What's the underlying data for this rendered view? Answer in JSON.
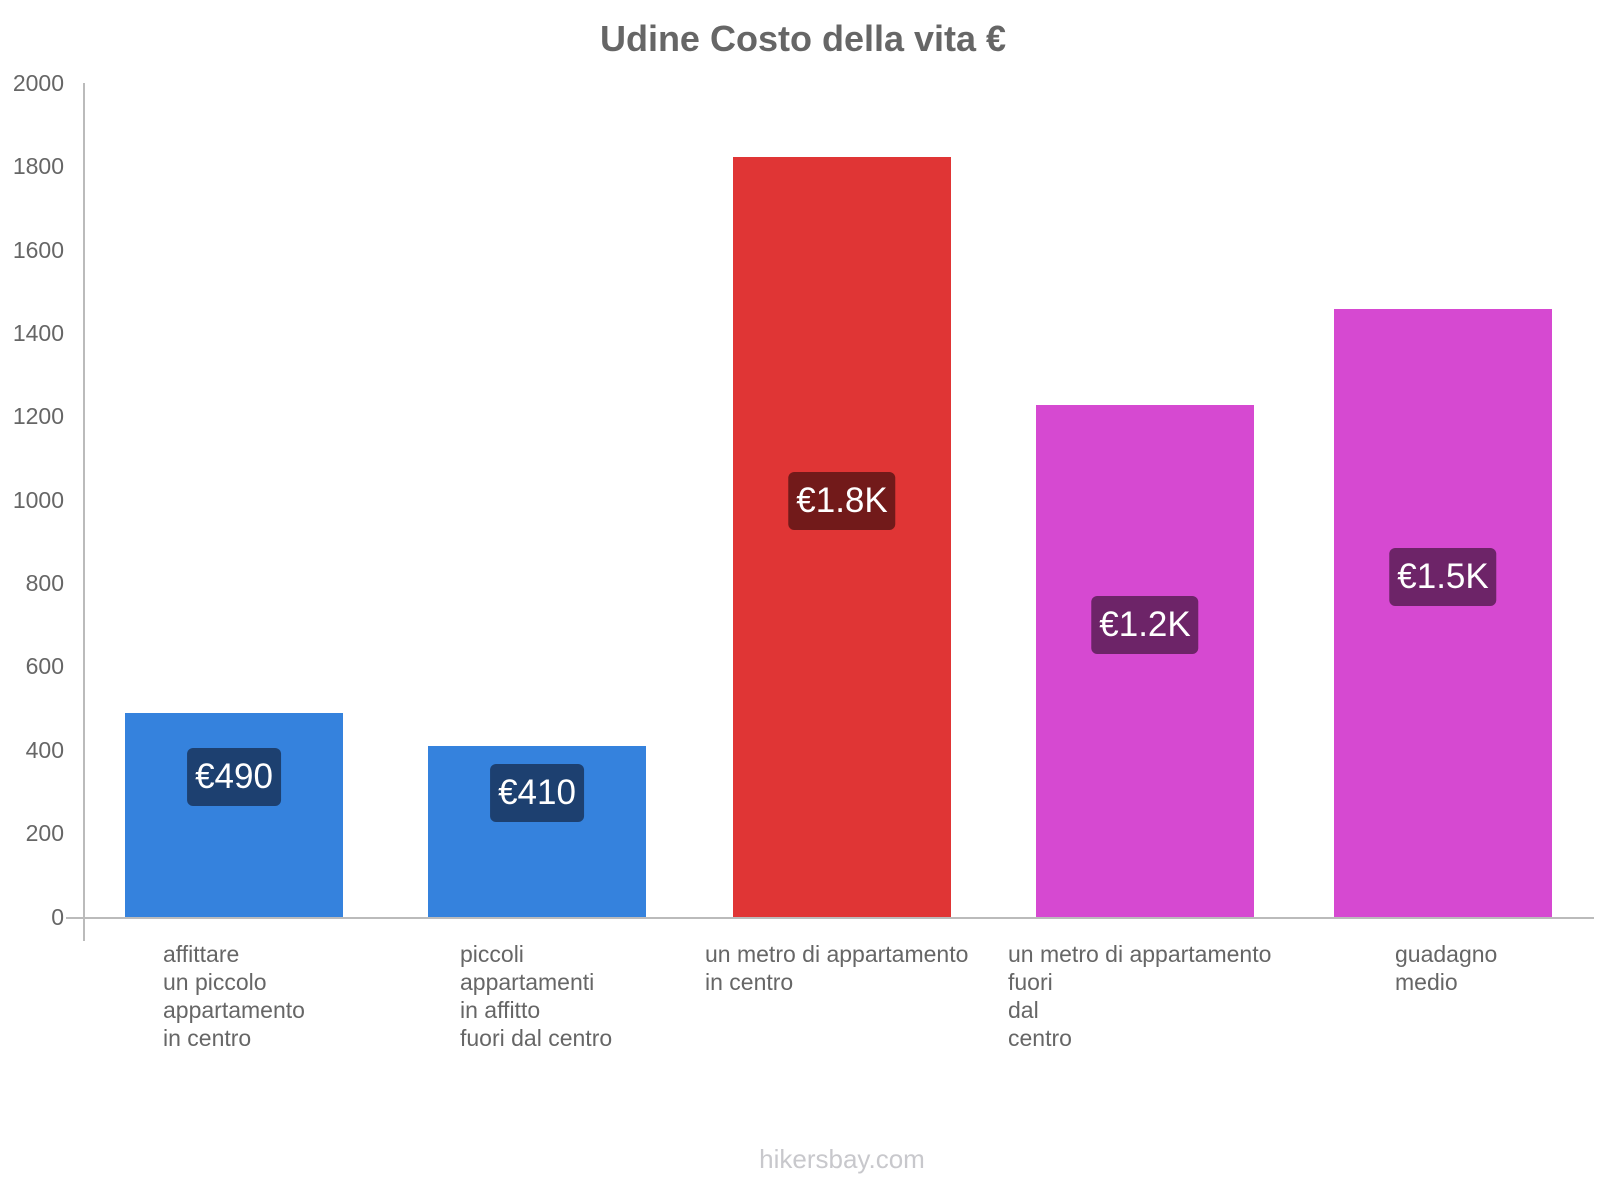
{
  "chart_data": {
    "type": "bar",
    "title": "Udine Costo della vita €",
    "xlabel": "",
    "ylabel": "",
    "ylim": [
      0,
      2000
    ],
    "yticks": [
      0,
      200,
      400,
      600,
      800,
      1000,
      1200,
      1400,
      1600,
      1800,
      2000
    ],
    "grid": false,
    "legend": null,
    "categories": [
      "affittare un piccolo appartamento in centro",
      "piccoli appartamenti in affitto fuori dal centro",
      "un metro di appartamento in centro",
      "un metro di appartamento fuori dal centro",
      "guadagno medio"
    ],
    "values": [
      490,
      410,
      1825,
      1230,
      1460
    ],
    "data_labels": [
      "€490",
      "€410",
      "€1.8K",
      "€1.2K",
      "€1.5K"
    ],
    "colors": [
      "#3582dd",
      "#3582dd",
      "#e03535",
      "#d649d1",
      "#d649d1"
    ]
  },
  "title": "Udine Costo della vita €",
  "y_ticks": [
    "2000",
    "1800",
    "1600",
    "1400",
    "1200",
    "1000",
    "800",
    "600",
    "400",
    "200",
    "0"
  ],
  "bars": [
    {
      "label_lines": [
        "affittare",
        "un piccolo",
        "appartamento",
        "in centro"
      ],
      "value_label": "€490",
      "color": "#3582dd",
      "label_bg": "#1d4070"
    },
    {
      "label_lines": [
        "piccoli",
        "appartamenti",
        "in affitto",
        "fuori dal centro"
      ],
      "value_label": "€410",
      "color": "#3582dd",
      "label_bg": "#1d4070"
    },
    {
      "label_lines": [
        "un metro di appartamento",
        "in centro"
      ],
      "value_label": "€1.8K",
      "color": "#e03535",
      "label_bg": "#721a1a"
    },
    {
      "label_lines": [
        "un metro di appartamento",
        "fuori",
        "dal",
        "centro"
      ],
      "value_label": "€1.2K",
      "color": "#d649d1",
      "label_bg": "#6d2468"
    },
    {
      "label_lines": [
        "guadagno",
        "medio"
      ],
      "value_label": "€1.5K",
      "color": "#d649d1",
      "label_bg": "#6d2468"
    }
  ],
  "footer": "hikersbay.com"
}
